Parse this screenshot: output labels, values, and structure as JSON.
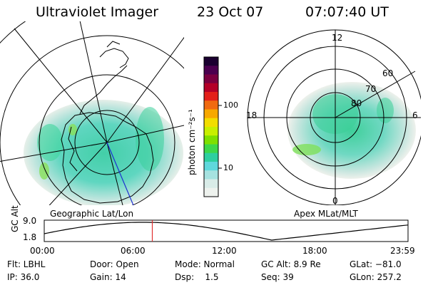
{
  "header": {
    "instrument": "Ultraviolet Imager",
    "date": "23 Oct 07",
    "time": "07:07:40 UT"
  },
  "left_map": {
    "caption": "Geographic Lat/Lon"
  },
  "right_map": {
    "caption": "Apex MLat/MLT",
    "mlt_labels": [
      "12",
      "18",
      "6",
      "0"
    ],
    "lat_labels": [
      "60",
      "70",
      "80"
    ]
  },
  "colorbar": {
    "ticks": [
      "100",
      "10"
    ],
    "label": "photon cm⁻²s⁻¹",
    "colors": [
      "#1a0030",
      "#4b004f",
      "#7a0040",
      "#b40028",
      "#e3201a",
      "#f06a10",
      "#f7a800",
      "#f2dd00",
      "#c8ef00",
      "#7ee000",
      "#3dd84a",
      "#2ecfa0",
      "#5fd8dc",
      "#a6e2e0",
      "#d9ece8",
      "#eef2ee"
    ]
  },
  "timeline": {
    "ylabel": "GC Alt",
    "yticks": [
      "9.0",
      "1.8"
    ],
    "xticks": [
      "00:00",
      "06:00",
      "12:00",
      "18:00",
      "23:59"
    ],
    "current_time_hours": 7.13,
    "marker_color": "#e03030"
  },
  "status": {
    "flt": "Flt: LBHL",
    "door": "Door: Open",
    "mode": "Mode: Normal",
    "gc_alt": "GC Alt: 8.9 Re",
    "glat": "GLat: −81.0",
    "ip": "IP: 36.0",
    "gain": "Gain: 14",
    "dsp": "Dsp:    1.5",
    "seq": "Seq: 39",
    "glon": "GLon: 257.2"
  }
}
